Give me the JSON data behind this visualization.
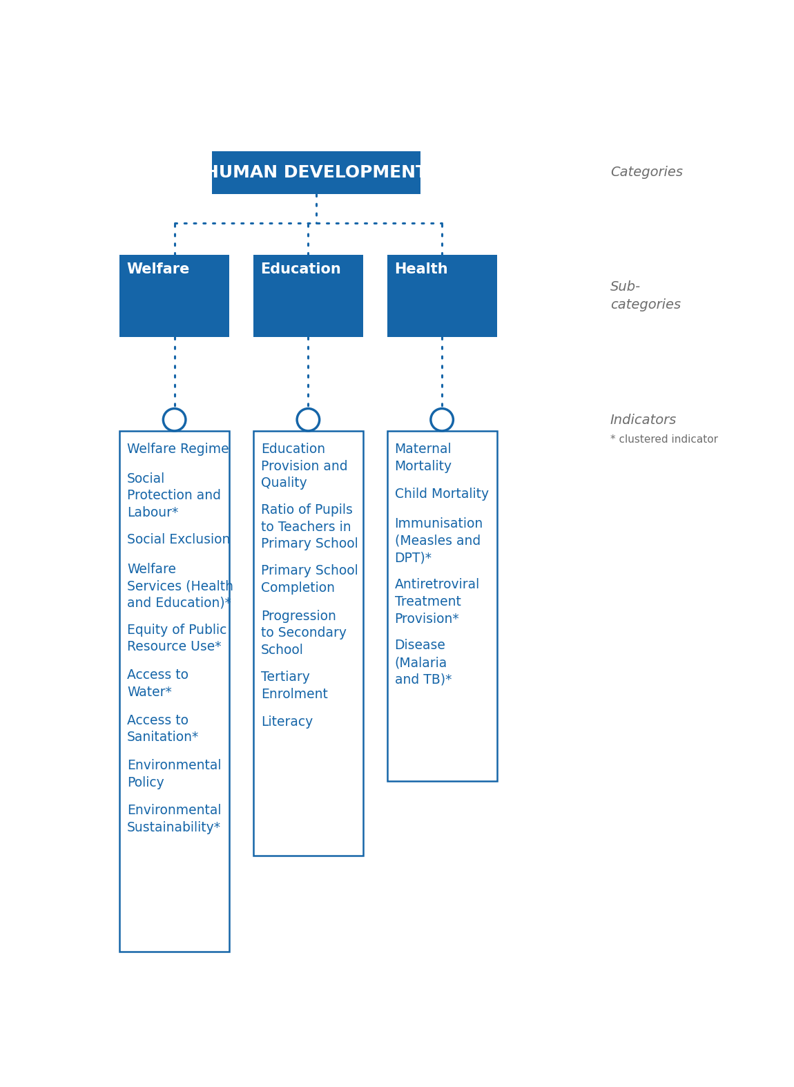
{
  "title": "HUMAN DEVELOPMENT",
  "title_bg": "#1565a8",
  "title_text_color": "#ffffff",
  "categories_label": "Categories",
  "subcategories_label": "Sub-\ncategories",
  "indicators_label": "Indicators",
  "clustered_label": "* clustered indicator",
  "label_color": "#6d6d6d",
  "blue": "#1565a8",
  "subcategories": [
    "Welfare",
    "Education",
    "Health"
  ],
  "welfare_indicators": [
    "Welfare Regime",
    "Social\nProtection and\nLabour*",
    "Social Exclusion",
    "Welfare\nServices (Health\nand Education)*",
    "Equity of Public\nResource Use*",
    "Access to\nWater*",
    "Access to\nSanitation*",
    "Environmental\nPolicy",
    "Environmental\nSustainability*"
  ],
  "education_indicators": [
    "Education\nProvision and\nQuality",
    "Ratio of Pupils\nto Teachers in\nPrimary School",
    "Primary School\nCompletion",
    "Progression\nto Secondary\nSchool",
    "Tertiary\nEnrolment",
    "Literacy"
  ],
  "health_indicators": [
    "Maternal\nMortality",
    "Child Mortality",
    "Immunisation\n(Measles and\nDPT)*",
    "Antiretroviral\nTreatment\nProvision*",
    "Disease\n(Malaria\nand TB)*"
  ]
}
